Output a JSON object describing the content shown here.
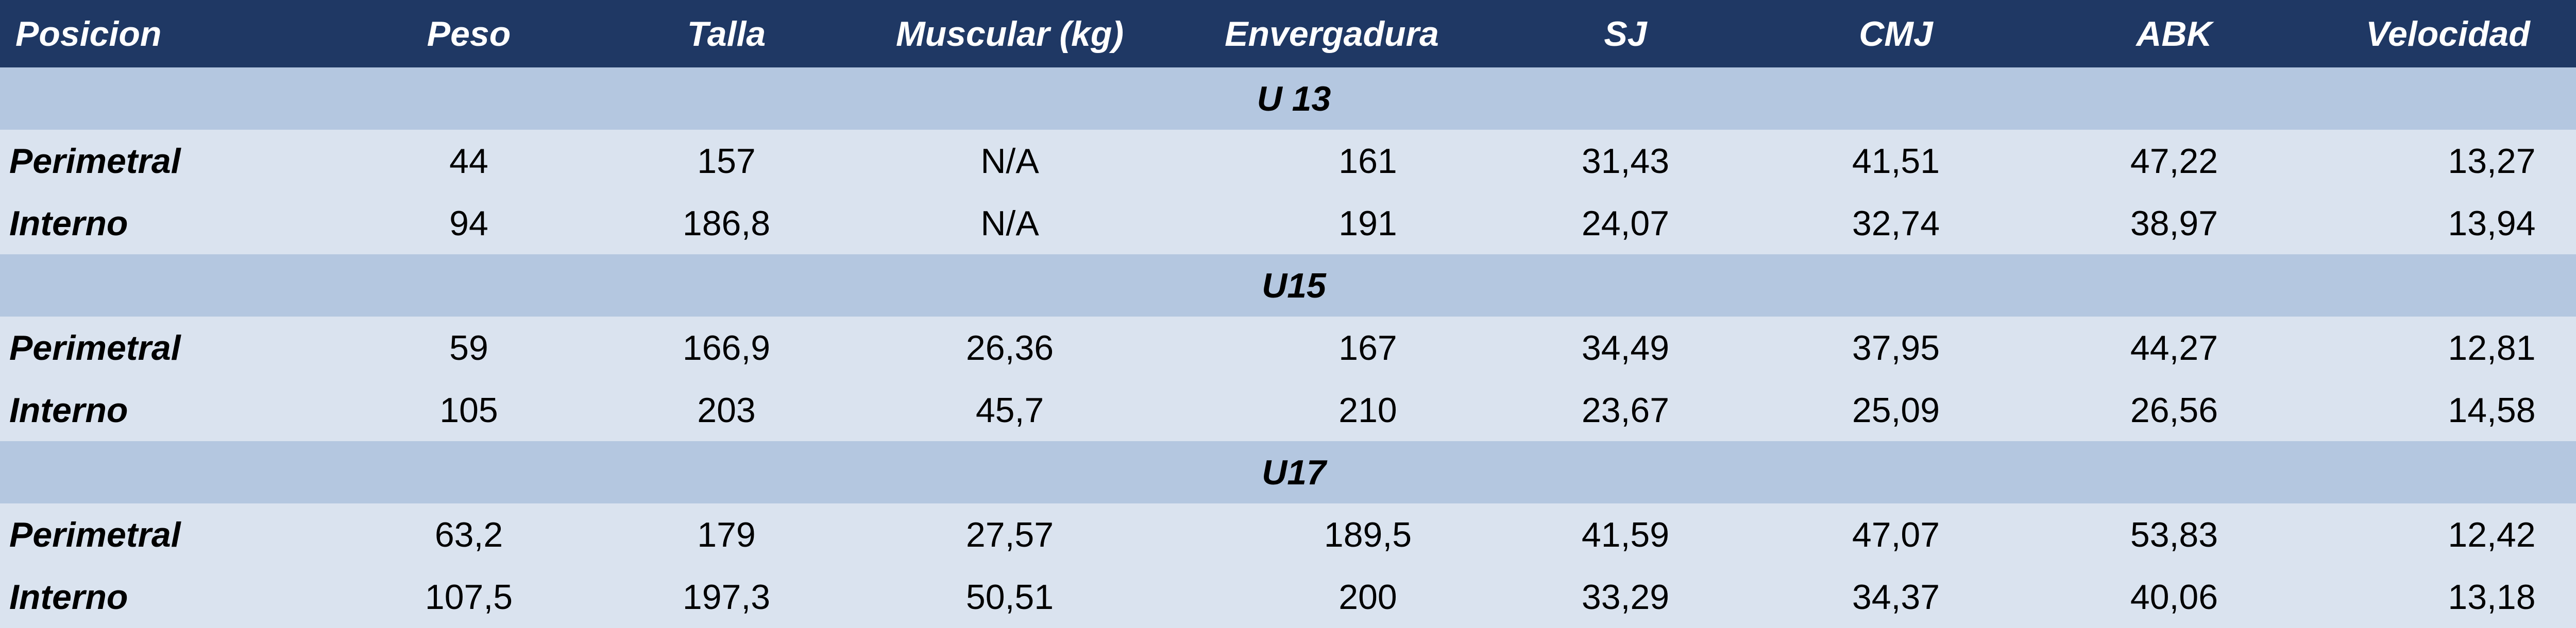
{
  "headers": [
    "Posicion",
    "Peso",
    "Talla",
    "Muscular (kg)",
    "Envergadura",
    "SJ",
    "CMJ",
    "ABK",
    "Velocidad"
  ],
  "groups": [
    {
      "label": "U 13",
      "rows": [
        {
          "pos": "Perimetral",
          "vals": [
            "44",
            "157",
            "N/A",
            "161",
            "31,43",
            "41,51",
            "47,22",
            "13,27"
          ]
        },
        {
          "pos": "Interno",
          "vals": [
            "94",
            "186,8",
            "N/A",
            "191",
            "24,07",
            "32,74",
            "38,97",
            "13,94"
          ]
        }
      ]
    },
    {
      "label": "U15",
      "rows": [
        {
          "pos": "Perimetral",
          "vals": [
            "59",
            "166,9",
            "26,36",
            "167",
            "34,49",
            "37,95",
            "44,27",
            "12,81"
          ]
        },
        {
          "pos": "Interno",
          "vals": [
            "105",
            "203",
            "45,7",
            "210",
            "23,67",
            "25,09",
            "26,56",
            "14,58"
          ]
        }
      ]
    },
    {
      "label": "U17",
      "rows": [
        {
          "pos": "Perimetral",
          "vals": [
            "63,2",
            "179",
            "27,57",
            "189,5",
            "41,59",
            "47,07",
            "53,83",
            "12,42"
          ]
        },
        {
          "pos": "Interno",
          "vals": [
            "107,5",
            "197,3",
            "50,51",
            "200",
            "33,29",
            "34,37",
            "40,06",
            "13,18"
          ]
        }
      ]
    }
  ],
  "colors": {
    "header_bg": "#1f3864",
    "group_bg": "#b4c7e0",
    "row_bg": "#dae3ef"
  }
}
